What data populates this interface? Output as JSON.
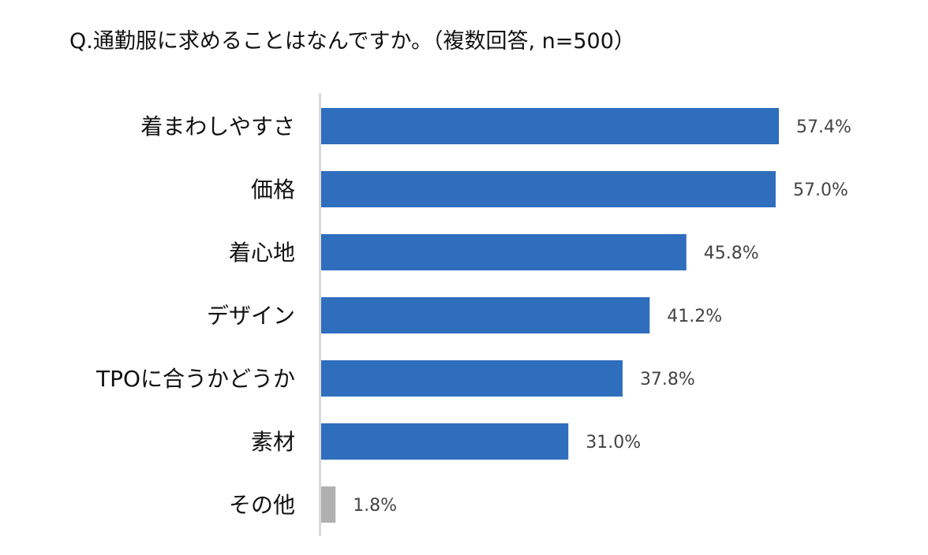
{
  "chart_data": {
    "type": "bar",
    "orientation": "horizontal",
    "title": "Q.通勤服に求めることはなんですか。（複数回答, n=500）",
    "categories": [
      "着まわしやすさ",
      "価格",
      "着心地",
      "デザイン",
      "TPOに合うかどうか",
      "素材",
      "その他"
    ],
    "values": [
      57.4,
      57.0,
      45.8,
      41.2,
      37.8,
      31.0,
      1.8
    ],
    "value_labels": [
      "57.4%",
      "57.0%",
      "45.8%",
      "41.2%",
      "37.8%",
      "31.0%",
      "1.8%"
    ],
    "unit": "%",
    "xlim": [
      0,
      60
    ],
    "grid": false,
    "legend": "none",
    "colors": {
      "bar": "#2f6ebd",
      "other_bar": "#b0b0b0",
      "axis": "#d9d9d9",
      "label": "#111111",
      "value_label": "#444444"
    }
  }
}
